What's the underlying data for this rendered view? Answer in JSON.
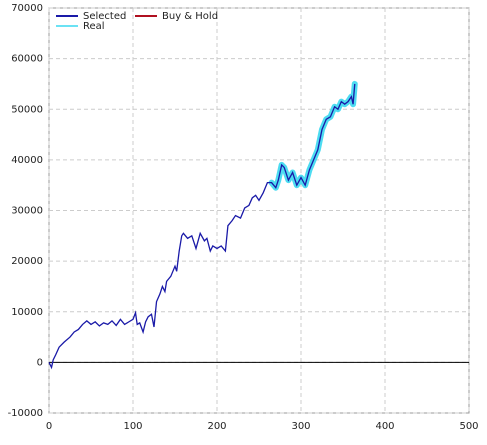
{
  "chart_data": {
    "type": "line",
    "series": [
      {
        "name": "Selected",
        "color": "#1a1aa8",
        "x": [
          0,
          3,
          5,
          8,
          12,
          18,
          25,
          30,
          35,
          40,
          45,
          50,
          55,
          60,
          65,
          70,
          75,
          80,
          85,
          90,
          95,
          100,
          103,
          105,
          108,
          112,
          115,
          118,
          122,
          125,
          128,
          132,
          135,
          138,
          140,
          145,
          150,
          152,
          155,
          158,
          160,
          165,
          170,
          175,
          180,
          185,
          188,
          192,
          195,
          200,
          205,
          210,
          213,
          218,
          222,
          228,
          233,
          238,
          242,
          246,
          250,
          255,
          260,
          265,
          270,
          273,
          277,
          280,
          285,
          290,
          295,
          300,
          305,
          310,
          315,
          320,
          325,
          330,
          335,
          340,
          344,
          348,
          352,
          356,
          360,
          362,
          364
        ],
        "values": [
          0,
          -1000,
          500,
          1500,
          3000,
          4000,
          5000,
          6000,
          6500,
          7500,
          8200,
          7500,
          8000,
          7200,
          7800,
          7500,
          8200,
          7300,
          8500,
          7500,
          8000,
          8500,
          9800,
          7500,
          7800,
          6000,
          8000,
          9000,
          9500,
          7000,
          12000,
          13500,
          15000,
          14000,
          16000,
          17000,
          19000,
          18000,
          22000,
          25000,
          25500,
          24500,
          25000,
          22500,
          25500,
          24000,
          24500,
          22000,
          23000,
          22500,
          23000,
          22000,
          27000,
          28000,
          29000,
          28500,
          30500,
          31000,
          32500,
          33000,
          32000,
          33500,
          35500,
          35500,
          34500,
          36000,
          39000,
          38500,
          36000,
          37500,
          35000,
          36500,
          35000,
          38000,
          40000,
          42000,
          46000,
          48000,
          48500,
          50500,
          50000,
          51500,
          51000,
          51500,
          52500,
          51000,
          55000
        ]
      },
      {
        "name": "Buy & Hold",
        "color": "#b01020",
        "x": [],
        "values": []
      },
      {
        "name": "Real",
        "color": "#3ad8f0",
        "x": [
          265,
          270,
          273,
          277,
          280,
          285,
          290,
          295,
          300,
          305,
          310,
          315,
          320,
          325,
          330,
          335,
          340,
          344,
          348,
          352,
          356,
          360,
          362,
          364
        ],
        "values": [
          35500,
          34500,
          36000,
          39000,
          38500,
          36000,
          37500,
          35000,
          36500,
          35000,
          38000,
          40000,
          42000,
          46000,
          48000,
          48500,
          50500,
          50000,
          51500,
          51000,
          51500,
          52500,
          51000,
          55000
        ]
      }
    ],
    "xlim": [
      0,
      500
    ],
    "xticks": [
      0,
      100,
      200,
      300,
      400,
      500
    ],
    "ylim": [
      -10000,
      70000
    ],
    "yticks": [
      -10000,
      0,
      10000,
      20000,
      30000,
      40000,
      50000,
      60000,
      70000
    ],
    "grid": true,
    "legend": "top-left"
  }
}
